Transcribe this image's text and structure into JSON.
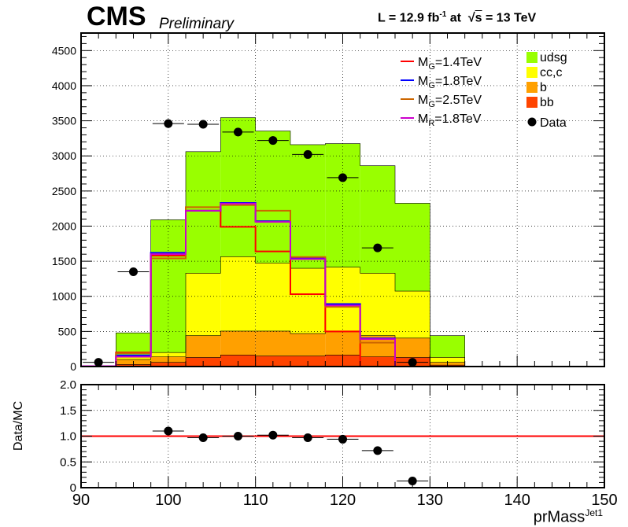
{
  "header": {
    "experiment": "CMS",
    "status": "Preliminary",
    "lumi_prefix": "L = 12.9 fb",
    "lumi_exp": "-1",
    "lumi_mid": " at  ",
    "sqrt_s": "s",
    "energy": " = 13 TeV"
  },
  "chart_data": [
    {
      "type": "bar",
      "stacked": true,
      "x_edges": [
        90,
        94,
        98,
        102,
        106,
        110,
        114,
        118,
        122,
        126,
        130,
        134,
        138,
        142,
        146,
        150
      ],
      "x_range": [
        90,
        150
      ],
      "ylim": [
        0,
        4750
      ],
      "y_ticks": [
        0,
        500,
        1000,
        1500,
        2000,
        2500,
        3000,
        3500,
        4000,
        4500
      ],
      "y_tick_labels": [
        "0",
        "500",
        "1000",
        "1500",
        "2000",
        "2500",
        "3000",
        "3500",
        "4000",
        "4500"
      ],
      "grid": true,
      "legend_position": "top-right",
      "stack": [
        {
          "name": "bb",
          "color": "#ff4400",
          "values": [
            0,
            30,
            60,
            130,
            165,
            150,
            150,
            165,
            140,
            130,
            20,
            0,
            0,
            0,
            0
          ]
        },
        {
          "name": "b",
          "color": "#ffa000",
          "values": [
            0,
            70,
            80,
            310,
            340,
            355,
            320,
            330,
            300,
            275,
            40,
            0,
            0,
            0,
            0
          ]
        },
        {
          "name": "cc,c",
          "color": "#ffff00",
          "values": [
            0,
            50,
            60,
            890,
            1060,
            970,
            930,
            920,
            890,
            670,
            70,
            0,
            0,
            0,
            0
          ]
        },
        {
          "name": "udsg",
          "color": "#99ff00",
          "values": [
            0,
            330,
            1890,
            1730,
            1980,
            1880,
            1760,
            1760,
            1530,
            1250,
            310,
            0,
            0,
            0,
            0
          ]
        }
      ],
      "lines": [
        {
          "name": "M_G=1.4TeV",
          "label": "M",
          "sub": "G",
          "suffix": "=1.4TeV",
          "color": "#ff0000",
          "values": [
            5,
            200,
            1580,
            2220,
            1990,
            1640,
            1030,
            500,
            0,
            0,
            0,
            0,
            0,
            0,
            0
          ]
        },
        {
          "name": "M_G=1.8TeV",
          "label": "M",
          "sub": "G",
          "suffix": "=1.8TeV",
          "color": "#0000ff",
          "values": [
            5,
            160,
            1620,
            2220,
            2330,
            2070,
            1540,
            890,
            400,
            0,
            0,
            0,
            0,
            0,
            0
          ]
        },
        {
          "name": "M_G=2.5TeV",
          "label": "M",
          "sub": "G",
          "suffix": "=2.5TeV",
          "color": "#cc6600",
          "values": [
            5,
            190,
            1540,
            2270,
            2300,
            2220,
            1560,
            850,
            340,
            0,
            0,
            0,
            0,
            0,
            0
          ]
        },
        {
          "name": "M_R=1.8TeV",
          "label": "M",
          "sub": "R",
          "suffix": "=1.8TeV",
          "color": "#cc00cc",
          "values": [
            5,
            140,
            1600,
            2220,
            2320,
            2060,
            1530,
            870,
            390,
            0,
            0,
            0,
            0,
            0,
            0
          ]
        }
      ],
      "data_points": {
        "name": "Data",
        "x": [
          92,
          96,
          100,
          104,
          108,
          112,
          116,
          120,
          124,
          128
        ],
        "y": [
          60,
          1350,
          3460,
          3450,
          3340,
          3220,
          3020,
          2690,
          1690,
          60
        ],
        "yerr": [
          10,
          40,
          60,
          60,
          60,
          60,
          55,
          55,
          45,
          10
        ]
      }
    },
    {
      "type": "scatter",
      "ylabel": "Data/MC",
      "xlabel": "prMass",
      "xlabel_sup": "Jet1",
      "x_range": [
        90,
        150
      ],
      "ylim": [
        0,
        2
      ],
      "y_ticks": [
        0,
        0.5,
        1,
        1.5,
        2
      ],
      "y_tick_labels": [
        "0",
        "0.5",
        "1.0",
        "1.5",
        "2.0"
      ],
      "x_ticks": [
        90,
        100,
        110,
        120,
        130,
        140,
        150
      ],
      "x_tick_labels": [
        "90",
        "100",
        "110",
        "120",
        "130",
        "140",
        "150"
      ],
      "reference_line": {
        "y": 1.0,
        "color": "#ff0000"
      },
      "points": {
        "x": [
          100,
          104,
          108,
          112,
          116,
          120,
          124,
          128
        ],
        "y": [
          1.1,
          0.97,
          1.0,
          1.02,
          0.97,
          0.94,
          0.72,
          0.13
        ]
      }
    }
  ]
}
